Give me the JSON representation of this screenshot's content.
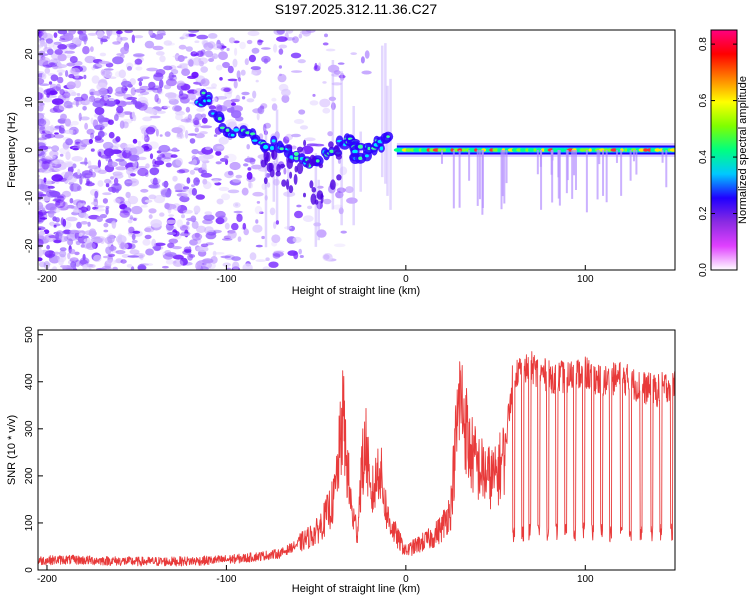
{
  "chart_data": [
    {
      "type": "heatmap",
      "title": "S197.2025.312.11.36.C27",
      "xlabel": "Height of straight line (km)",
      "ylabel": "Frequency (Hz)",
      "xlim": [
        -205,
        150
      ],
      "ylim": [
        -25,
        25
      ],
      "xticks": [
        -200,
        -100,
        0,
        100
      ],
      "yticks": [
        -20,
        -10,
        0,
        10,
        20
      ],
      "colorbar": {
        "label": "Normalized spectral amplitude",
        "range": [
          0,
          0.85
        ],
        "ticks": [
          0.0,
          0.2,
          0.4,
          0.6,
          0.8
        ],
        "tick_labels": [
          "0.0",
          "0.2",
          "0.4",
          "0.6",
          "0.8"
        ],
        "colors": [
          "#ffffff",
          "#e040ff",
          "#8a2be2",
          "#2000ff",
          "#00c8ff",
          "#00ff80",
          "#80ff00",
          "#ffff00",
          "#ff8000",
          "#ff0000",
          "#ff0080"
        ]
      },
      "features": [
        {
          "name": "noise_cloud",
          "x_range": [
            -205,
            -60
          ],
          "freq_range": [
            -25,
            25
          ]
        },
        {
          "name": "descending_trace",
          "points": [
            [
              -115,
              10.5
            ],
            [
              -110,
              11
            ],
            [
              -100,
              4
            ],
            [
              -90,
              3
            ],
            [
              -80,
              2
            ],
            [
              -70,
              0
            ],
            [
              -60,
              -2
            ],
            [
              -50,
              -2
            ],
            [
              -40,
              0
            ],
            [
              -30,
              2
            ],
            [
              -28,
              -1
            ],
            [
              -20,
              0
            ],
            [
              -15,
              1
            ],
            [
              -10,
              4
            ]
          ]
        },
        {
          "name": "steady_line",
          "x_range": [
            -5,
            150
          ],
          "freq": 0
        }
      ]
    },
    {
      "type": "line",
      "xlabel": "Height of straight line (km)",
      "ylabel": "SNR (10 * v/v)",
      "xlim": [
        -205,
        150
      ],
      "ylim": [
        0,
        510
      ],
      "xticks": [
        -200,
        -100,
        0,
        100
      ],
      "yticks": [
        0,
        100,
        200,
        300,
        400,
        500
      ],
      "color": "#e83a3a",
      "series": [
        {
          "name": "SNR",
          "x": [
            -205,
            -190,
            -170,
            -150,
            -130,
            -110,
            -100,
            -90,
            -80,
            -70,
            -60,
            -50,
            -45,
            -40,
            -37,
            -35,
            -33,
            -30,
            -27,
            -25,
            -22,
            -20,
            -17,
            -15,
            -12,
            -10,
            -5,
            0,
            5,
            10,
            15,
            20,
            25,
            28,
            30,
            33,
            35,
            40,
            45,
            50,
            55,
            57,
            60,
            70,
            80,
            90,
            100,
            110,
            120,
            130,
            140,
            150
          ],
          "values": [
            20,
            22,
            20,
            18,
            18,
            20,
            22,
            25,
            30,
            35,
            55,
            80,
            110,
            150,
            250,
            330,
            230,
            120,
            80,
            200,
            270,
            150,
            180,
            230,
            150,
            110,
            70,
            40,
            50,
            60,
            70,
            90,
            130,
            280,
            370,
            320,
            260,
            220,
            200,
            195,
            245,
            320,
            420,
            430,
            410,
            410,
            420,
            400,
            410,
            390,
            380,
            400
          ]
        }
      ]
    }
  ]
}
